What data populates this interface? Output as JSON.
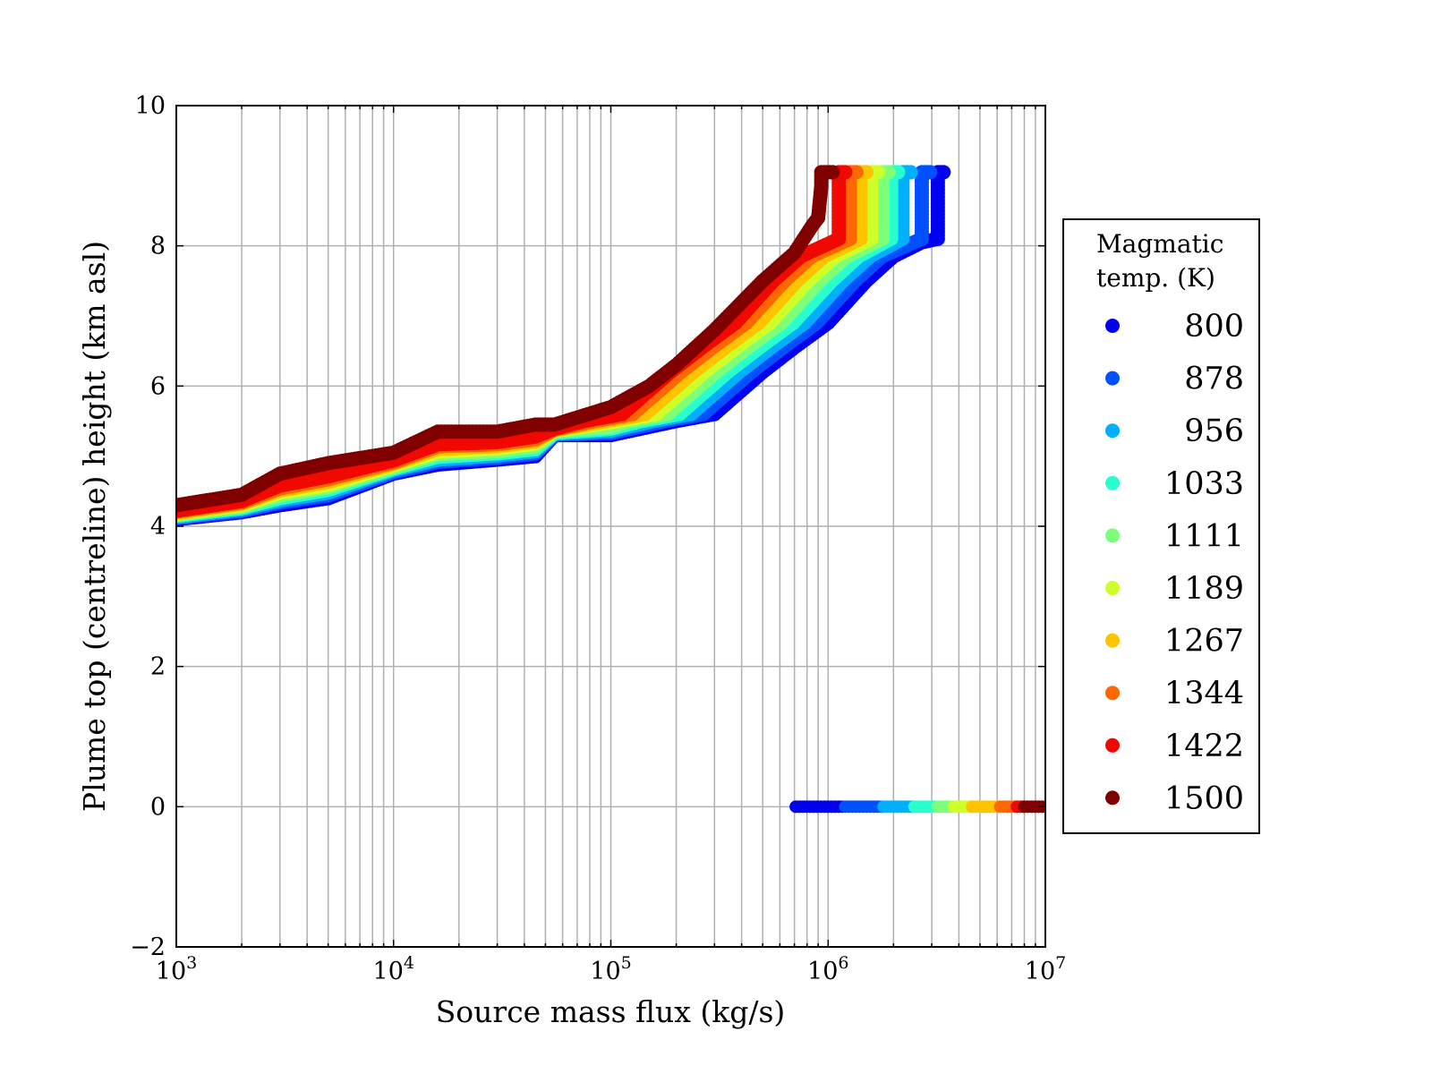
{
  "chart_data": {
    "type": "scatter",
    "title": "",
    "xlabel": "Source mass flux (kg/s)",
    "ylabel": "Plume top (centreline) height (km asl)",
    "xscale": "log",
    "xlim": [
      1000.0,
      10000000.0
    ],
    "ylim": [
      -2,
      10
    ],
    "grid": true,
    "x_ticks": [
      {
        "value": 1000.0,
        "base": "10",
        "exp": "3"
      },
      {
        "value": 10000.0,
        "base": "10",
        "exp": "4"
      },
      {
        "value": 100000.0,
        "base": "10",
        "exp": "5"
      },
      {
        "value": 1000000.0,
        "base": "10",
        "exp": "6"
      },
      {
        "value": 10000000.0,
        "base": "10",
        "exp": "7"
      }
    ],
    "y_ticks": [
      {
        "value": 10,
        "label": "10"
      },
      {
        "value": 8,
        "label": "8"
      },
      {
        "value": 6,
        "label": "6"
      },
      {
        "value": 4,
        "label": "4"
      },
      {
        "value": 2,
        "label": "2"
      },
      {
        "value": 0,
        "label": "0"
      },
      {
        "value": -2,
        "label": "−2"
      }
    ],
    "legend": {
      "title_line1": "Magmatic",
      "title_line2": "temp. (K)",
      "placement": "right-outside"
    },
    "series": [
      {
        "name": "800",
        "color": "#0000ee",
        "points": [
          [
            1000.0,
            4.1
          ],
          [
            2000.0,
            4.2
          ],
          [
            3000.0,
            4.3
          ],
          [
            5000.0,
            4.4
          ],
          [
            10000.0,
            4.75
          ],
          [
            16000.0,
            4.88
          ],
          [
            30000.0,
            4.95
          ],
          [
            45000.0,
            5.0
          ],
          [
            55000.0,
            5.3
          ],
          [
            100000.0,
            5.3
          ],
          [
            200000.0,
            5.5
          ],
          [
            300000.0,
            5.6
          ],
          [
            500000.0,
            6.2
          ],
          [
            700000.0,
            6.55
          ],
          [
            1000000.0,
            6.9
          ],
          [
            1500000.0,
            7.5
          ],
          [
            2000000.0,
            7.85
          ],
          [
            2700000.0,
            8.05
          ],
          [
            3200000.0,
            8.1
          ],
          [
            3200000.0,
            9.05
          ],
          [
            3400000.0,
            9.05
          ]
        ],
        "zero_range": [
          710000.0,
          1200000.0
        ]
      },
      {
        "name": "878",
        "color": "#0050ff",
        "points": [
          [
            1000.0,
            4.12
          ],
          [
            2000.0,
            4.22
          ],
          [
            3000.0,
            4.34
          ],
          [
            5000.0,
            4.44
          ],
          [
            10000.0,
            4.77
          ],
          [
            16000.0,
            4.92
          ],
          [
            30000.0,
            4.98
          ],
          [
            45000.0,
            5.04
          ],
          [
            55000.0,
            5.31
          ],
          [
            100000.0,
            5.33
          ],
          [
            177000.0,
            5.5
          ],
          [
            266000.0,
            5.6
          ],
          [
            443000.0,
            6.2
          ],
          [
            620000.0,
            6.55
          ],
          [
            885000.0,
            6.9
          ],
          [
            1330000.0,
            7.5
          ],
          [
            1770000.0,
            7.85
          ],
          [
            2700000.0,
            8.1
          ],
          [
            2700000.0,
            9.05
          ],
          [
            2950000.0,
            9.05
          ]
        ],
        "zero_range": [
          1200000.0,
          1800000.0
        ]
      },
      {
        "name": "956",
        "color": "#00b0ff",
        "points": [
          [
            1000.0,
            4.13
          ],
          [
            2000.0,
            4.24
          ],
          [
            3000.0,
            4.37
          ],
          [
            5000.0,
            4.48
          ],
          [
            10000.0,
            4.8
          ],
          [
            16000.0,
            4.95
          ],
          [
            30000.0,
            5.01
          ],
          [
            45000.0,
            5.07
          ],
          [
            55000.0,
            5.32
          ],
          [
            100000.0,
            5.36
          ],
          [
            156000.0,
            5.5
          ],
          [
            234000.0,
            5.6
          ],
          [
            390000.0,
            6.2
          ],
          [
            546000.0,
            6.55
          ],
          [
            780000.0,
            6.9
          ],
          [
            1170000.0,
            7.5
          ],
          [
            1560000.0,
            7.85
          ],
          [
            2200000.0,
            8.1
          ],
          [
            2200000.0,
            9.05
          ],
          [
            2400000.0,
            9.05
          ]
        ],
        "zero_range": [
          1800000.0,
          2500000.0
        ]
      },
      {
        "name": "1033",
        "color": "#29ffce",
        "points": [
          [
            1000.0,
            4.15
          ],
          [
            2000.0,
            4.26
          ],
          [
            3000.0,
            4.4
          ],
          [
            5000.0,
            4.52
          ],
          [
            10000.0,
            4.82
          ],
          [
            16000.0,
            4.99
          ],
          [
            30000.0,
            5.04
          ],
          [
            45000.0,
            5.1
          ],
          [
            55000.0,
            5.33
          ],
          [
            100000.0,
            5.39
          ],
          [
            138000.0,
            5.5
          ],
          [
            207000.0,
            5.6
          ],
          [
            345000.0,
            6.2
          ],
          [
            483000.0,
            6.55
          ],
          [
            690000.0,
            6.9
          ],
          [
            1040000.0,
            7.5
          ],
          [
            1380000.0,
            7.85
          ],
          [
            1950000.0,
            8.1
          ],
          [
            1950000.0,
            9.05
          ],
          [
            2100000.0,
            9.05
          ]
        ],
        "zero_range": [
          2500000.0,
          3200000.0
        ]
      },
      {
        "name": "1111",
        "color": "#7dff7a",
        "points": [
          [
            1000.0,
            4.16
          ],
          [
            2000.0,
            4.28
          ],
          [
            3000.0,
            4.44
          ],
          [
            5000.0,
            4.56
          ],
          [
            10000.0,
            4.84
          ],
          [
            16000.0,
            5.03
          ],
          [
            30000.0,
            5.07
          ],
          [
            45000.0,
            5.14
          ],
          [
            55000.0,
            5.35
          ],
          [
            100000.0,
            5.42
          ],
          [
            122000.0,
            5.5
          ],
          [
            183000.0,
            5.6
          ],
          [
            305000.0,
            6.2
          ],
          [
            427000.0,
            6.55
          ],
          [
            610000.0,
            6.9
          ],
          [
            915000.0,
            7.5
          ],
          [
            1220000.0,
            7.85
          ],
          [
            1780000.0,
            8.1
          ],
          [
            1780000.0,
            9.05
          ],
          [
            1900000.0,
            9.05
          ]
        ],
        "zero_range": [
          3200000.0,
          3800000.0
        ]
      },
      {
        "name": "1189",
        "color": "#ceff29",
        "points": [
          [
            1000.0,
            4.18
          ],
          [
            2000.0,
            4.3
          ],
          [
            3000.0,
            4.48
          ],
          [
            5000.0,
            4.59
          ],
          [
            10000.0,
            4.87
          ],
          [
            16000.0,
            5.06
          ],
          [
            30000.0,
            5.11
          ],
          [
            45000.0,
            5.18
          ],
          [
            55000.0,
            5.36
          ],
          [
            108000.0,
            5.5
          ],
          [
            162000.0,
            5.6
          ],
          [
            270000.0,
            6.2
          ],
          [
            378000.0,
            6.55
          ],
          [
            540000.0,
            6.9
          ],
          [
            810000.0,
            7.5
          ],
          [
            1080000.0,
            7.85
          ],
          [
            1580000.0,
            8.1
          ],
          [
            1580000.0,
            9.05
          ],
          [
            1700000.0,
            9.05
          ]
        ],
        "zero_range": [
          3800000.0,
          4600000.0
        ]
      },
      {
        "name": "1267",
        "color": "#ffc400",
        "points": [
          [
            1000.0,
            4.19
          ],
          [
            2000.0,
            4.32
          ],
          [
            3000.0,
            4.51
          ],
          [
            5000.0,
            4.63
          ],
          [
            10000.0,
            4.89
          ],
          [
            16000.0,
            5.1
          ],
          [
            30000.0,
            5.14
          ],
          [
            45000.0,
            5.21
          ],
          [
            55000.0,
            5.37
          ],
          [
            96000.0,
            5.5
          ],
          [
            144000.0,
            5.6
          ],
          [
            240000.0,
            6.2
          ],
          [
            336000.0,
            6.55
          ],
          [
            480000.0,
            6.9
          ],
          [
            720000.0,
            7.5
          ],
          [
            960000.0,
            7.85
          ],
          [
            1410000.0,
            8.1
          ],
          [
            1410000.0,
            9.05
          ],
          [
            1500000.0,
            9.05
          ]
        ],
        "zero_range": [
          4600000.0,
          6200000.0
        ]
      },
      {
        "name": "1344",
        "color": "#ff6800",
        "points": [
          [
            1000.0,
            4.21
          ],
          [
            2000.0,
            4.34
          ],
          [
            3000.0,
            4.54
          ],
          [
            5000.0,
            4.67
          ],
          [
            10000.0,
            4.91
          ],
          [
            16000.0,
            5.14
          ],
          [
            30000.0,
            5.17
          ],
          [
            45000.0,
            5.24
          ],
          [
            55000.0,
            5.38
          ],
          [
            84000.0,
            5.5
          ],
          [
            126000.0,
            5.6
          ],
          [
            210000.0,
            6.2
          ],
          [
            294000.0,
            6.55
          ],
          [
            420000.0,
            6.9
          ],
          [
            630000.0,
            7.5
          ],
          [
            840000.0,
            7.85
          ],
          [
            1260000.0,
            8.1
          ],
          [
            1260000.0,
            9.05
          ],
          [
            1350000.0,
            9.05
          ]
        ],
        "zero_range": [
          6200000.0,
          7400000.0
        ]
      },
      {
        "name": "1422",
        "color": "#f10800",
        "points": [
          [
            1000.0,
            4.22
          ],
          [
            2000.0,
            4.36
          ],
          [
            3000.0,
            4.58
          ],
          [
            5000.0,
            4.71
          ],
          [
            10000.0,
            4.94
          ],
          [
            16000.0,
            5.17
          ],
          [
            30000.0,
            5.2
          ],
          [
            45000.0,
            5.28
          ],
          [
            55000.0,
            5.39
          ],
          [
            75000.0,
            5.5
          ],
          [
            113000.0,
            5.6
          ],
          [
            188000.0,
            6.2
          ],
          [
            263000.0,
            6.55
          ],
          [
            375000.0,
            6.9
          ],
          [
            560000.0,
            7.5
          ],
          [
            750000.0,
            7.85
          ],
          [
            1120000.0,
            8.1
          ],
          [
            1120000.0,
            9.05
          ],
          [
            1200000.0,
            9.05
          ]
        ],
        "zero_range": [
          7400000.0,
          8000000.0
        ]
      },
      {
        "name": "1500",
        "color": "#800000",
        "points": [
          [
            1000.0,
            4.3
          ],
          [
            2000.0,
            4.45
          ],
          [
            3000.0,
            4.75
          ],
          [
            5000.0,
            4.9
          ],
          [
            10000.0,
            5.05
          ],
          [
            16000.0,
            5.35
          ],
          [
            30000.0,
            5.35
          ],
          [
            45000.0,
            5.45
          ],
          [
            55000.0,
            5.45
          ],
          [
            100000.0,
            5.7
          ],
          [
            150000.0,
            6.0
          ],
          [
            200000.0,
            6.3
          ],
          [
            300000.0,
            6.8
          ],
          [
            500000.0,
            7.5
          ],
          [
            700000.0,
            7.9
          ],
          [
            850000.0,
            8.3
          ],
          [
            900000.0,
            8.4
          ],
          [
            930000.0,
            8.85
          ],
          [
            930000.0,
            9.05
          ],
          [
            1050000.0,
            9.05
          ]
        ],
        "zero_range": [
          8000000.0,
          10000000.0
        ]
      }
    ]
  }
}
